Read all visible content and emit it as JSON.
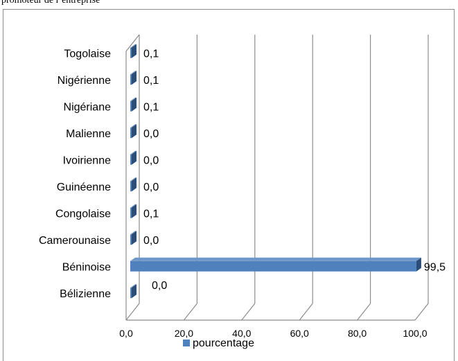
{
  "heading": "promoteur de l’entreprise",
  "chart_data": {
    "type": "bar",
    "orientation": "horizontal",
    "three_d": true,
    "categories": [
      "Bélizienne",
      "Béninoise",
      "Camerounaise",
      "Congolaise",
      "Guinéenne",
      "Ivoirienne",
      "Malienne",
      "Nigériane",
      "Nigérienne",
      "Togolaise"
    ],
    "values": [
      0.0,
      99.5,
      0.0,
      0.1,
      0.0,
      0.0,
      0.0,
      0.1,
      0.1,
      0.1
    ],
    "value_labels": [
      "0,0",
      "99,5",
      "0,0",
      "0,1",
      "0,0",
      "0,0",
      "0,0",
      "0,1",
      "0,1",
      "0,1"
    ],
    "x_ticks": [
      "0,0",
      "20,0",
      "40,0",
      "60,0",
      "80,0",
      "100,0"
    ],
    "xlim": [
      0,
      100
    ],
    "grid": true,
    "legend": {
      "position": "bottom",
      "entries": [
        "pourcentage"
      ]
    },
    "series": [
      {
        "name": "pourcentage",
        "color": "#4f81bd"
      }
    ]
  }
}
